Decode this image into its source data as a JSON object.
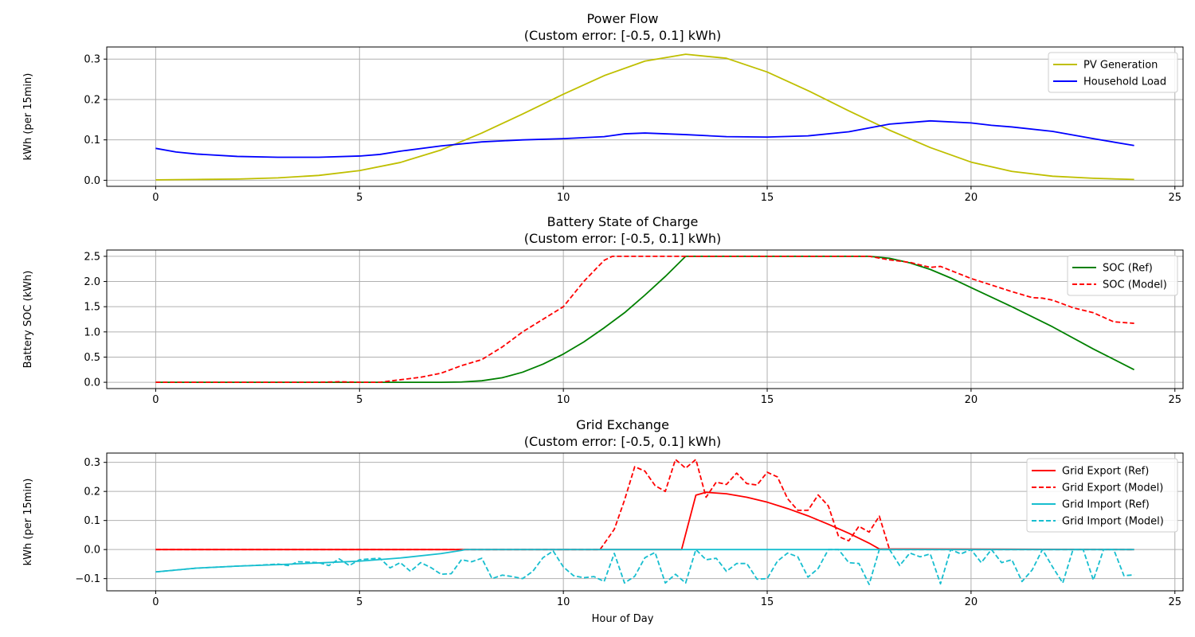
{
  "chart_data": [
    {
      "type": "line",
      "title": "Power Flow",
      "subtitle": "(Custom error: [-0.5, 0.1] kWh)",
      "xlabel": "",
      "ylabel": "kWh (per 15min)",
      "xlim": [
        -1.2,
        25.2
      ],
      "ylim": [
        -0.015,
        0.33
      ],
      "xticks": [
        0,
        5,
        10,
        15,
        20,
        25
      ],
      "yticks": [
        0.0,
        0.1,
        0.2,
        0.3
      ],
      "ytick_format": 1,
      "grid": true,
      "legend_position": "top-right",
      "series": [
        {
          "name": "PV Generation",
          "color": "#bfbf00",
          "dash": "solid",
          "x": [
            0,
            1,
            2,
            3,
            4,
            5,
            6,
            7,
            8,
            9,
            10,
            11,
            12,
            13,
            14,
            15,
            16,
            17,
            18,
            19,
            20,
            21,
            22,
            23,
            24
          ],
          "y": [
            0.001,
            0.002,
            0.003,
            0.006,
            0.012,
            0.024,
            0.044,
            0.075,
            0.117,
            0.164,
            0.213,
            0.259,
            0.295,
            0.312,
            0.302,
            0.268,
            0.222,
            0.172,
            0.124,
            0.081,
            0.045,
            0.022,
            0.01,
            0.005,
            0.002
          ]
        },
        {
          "name": "Household Load",
          "color": "#0000ff",
          "dash": "solid",
          "x": [
            0,
            0.5,
            1,
            2,
            3,
            4,
            5,
            5.5,
            6,
            7,
            8,
            9,
            10,
            11,
            11.5,
            12,
            13,
            14,
            15,
            16,
            17,
            18,
            19,
            20,
            20.5,
            21,
            22,
            23,
            24
          ],
          "y": [
            0.079,
            0.07,
            0.065,
            0.059,
            0.057,
            0.057,
            0.06,
            0.064,
            0.072,
            0.085,
            0.095,
            0.1,
            0.103,
            0.108,
            0.115,
            0.117,
            0.113,
            0.108,
            0.107,
            0.11,
            0.12,
            0.139,
            0.147,
            0.142,
            0.136,
            0.132,
            0.121,
            0.103,
            0.086
          ]
        }
      ]
    },
    {
      "type": "line",
      "title": "Battery State of Charge",
      "subtitle": "(Custom error: [-0.5, 0.1] kWh)",
      "xlabel": "",
      "ylabel": "Battery SOC (kWh)",
      "xlim": [
        -1.2,
        25.2
      ],
      "ylim": [
        -0.125,
        2.625
      ],
      "xticks": [
        0,
        5,
        10,
        15,
        20,
        25
      ],
      "yticks": [
        0.0,
        0.5,
        1.0,
        1.5,
        2.0,
        2.5
      ],
      "ytick_format": 1,
      "grid": true,
      "legend_position": "top-right",
      "series": [
        {
          "name": "SOC (Ref)",
          "color": "#008000",
          "dash": "solid",
          "x": [
            0,
            7,
            7.5,
            8,
            8.5,
            9,
            9.5,
            10,
            10.5,
            11,
            11.5,
            12,
            12.5,
            13,
            17.5,
            18,
            18.5,
            19,
            19.5,
            20,
            21,
            22,
            23,
            24
          ],
          "y": [
            0,
            0,
            0.005,
            0.03,
            0.09,
            0.2,
            0.36,
            0.56,
            0.8,
            1.08,
            1.38,
            1.73,
            2.1,
            2.5,
            2.5,
            2.46,
            2.37,
            2.24,
            2.07,
            1.88,
            1.5,
            1.1,
            0.66,
            0.25
          ]
        },
        {
          "name": "SOC (Model)",
          "color": "#ff0000",
          "dash": "dashed",
          "x": [
            0,
            1,
            2,
            3,
            4,
            4.5,
            5,
            5.5,
            6,
            6.5,
            7,
            7.5,
            8,
            8.5,
            9,
            9.5,
            10,
            10.5,
            11,
            11.2,
            17.5,
            18,
            18.5,
            19,
            19.25,
            19.5,
            20,
            20.5,
            21,
            21.5,
            21.75,
            22,
            22.5,
            23,
            23.5,
            24
          ],
          "y": [
            0,
            0,
            0,
            0,
            0,
            0.01,
            0,
            0,
            0.05,
            0.1,
            0.18,
            0.33,
            0.45,
            0.7,
            1.0,
            1.25,
            1.5,
            2.0,
            2.42,
            2.5,
            2.5,
            2.43,
            2.38,
            2.28,
            2.3,
            2.22,
            2.06,
            1.93,
            1.8,
            1.68,
            1.67,
            1.63,
            1.48,
            1.38,
            1.2,
            1.17
          ]
        }
      ]
    },
    {
      "type": "line",
      "title": "Grid Exchange",
      "subtitle": "(Custom error: [-0.5, 0.1] kWh)",
      "xlabel": "Hour of Day",
      "ylabel": "kWh (per 15min)",
      "xlim": [
        -1.2,
        25.2
      ],
      "ylim": [
        -0.142,
        0.332
      ],
      "xticks": [
        0,
        5,
        10,
        15,
        20,
        25
      ],
      "yticks": [
        -0.1,
        0.0,
        0.1,
        0.2,
        0.3
      ],
      "ytick_format": 1,
      "grid": true,
      "legend_position": "top-right",
      "series": [
        {
          "name": "Grid Export (Ref)",
          "color": "#ff0000",
          "dash": "solid",
          "x": [
            0,
            12.9,
            13.25,
            13.5,
            14,
            14.5,
            15,
            15.5,
            16,
            16.5,
            17,
            17.5,
            17.75,
            24
          ],
          "y": [
            0,
            0,
            0.187,
            0.197,
            0.192,
            0.18,
            0.163,
            0.141,
            0.116,
            0.087,
            0.056,
            0.022,
            0.002,
            0
          ]
        },
        {
          "name": "Grid Export (Model)",
          "color": "#ff0000",
          "dash": "dashed",
          "x": [
            0,
            10.9,
            11.25,
            11.5,
            11.75,
            12,
            12.25,
            12.5,
            12.75,
            13,
            13.25,
            13.5,
            13.75,
            14,
            14.25,
            14.5,
            14.75,
            15,
            15.25,
            15.5,
            15.75,
            16,
            16.25,
            16.5,
            16.75,
            17,
            17.25,
            17.5,
            17.75,
            18,
            24
          ],
          "y": [
            0,
            0,
            0.07,
            0.17,
            0.285,
            0.27,
            0.22,
            0.2,
            0.31,
            0.28,
            0.31,
            0.18,
            0.232,
            0.224,
            0.263,
            0.227,
            0.222,
            0.266,
            0.25,
            0.175,
            0.135,
            0.135,
            0.188,
            0.15,
            0.045,
            0.03,
            0.08,
            0.06,
            0.115,
            0,
            0
          ]
        },
        {
          "name": "Grid Import (Ref)",
          "color": "#17becf",
          "dash": "solid",
          "x": [
            0,
            1,
            2,
            3,
            4,
            5,
            6,
            7,
            7.5,
            7.6,
            24
          ],
          "y": [
            -0.077,
            -0.064,
            -0.057,
            -0.052,
            -0.046,
            -0.04,
            -0.029,
            -0.014,
            -0.003,
            0,
            0
          ]
        },
        {
          "name": "Grid Import (Model)",
          "color": "#17becf",
          "dash": "dashed",
          "x": [
            0,
            1,
            2,
            2.5,
            3,
            3.25,
            3.5,
            4,
            4.25,
            4.5,
            4.75,
            5,
            5.25,
            5.5,
            5.75,
            6,
            6.25,
            6.5,
            6.75,
            7,
            7.25,
            7.5,
            7.75,
            8,
            8.25,
            8.5,
            8.75,
            9,
            9.25,
            9.5,
            9.75,
            10,
            10.25,
            10.5,
            10.75,
            11,
            11.25,
            11.5,
            11.75,
            12,
            12.25,
            12.5,
            12.75,
            13,
            13.25,
            13.5,
            13.75,
            14,
            14.25,
            14.5,
            14.75,
            15,
            15.25,
            15.5,
            15.75,
            16,
            16.25,
            16.5,
            16.75,
            17,
            17.25,
            17.5,
            17.75,
            18,
            18.25,
            18.5,
            18.75,
            19,
            19.25,
            19.5,
            19.75,
            20,
            20.25,
            20.5,
            20.75,
            21,
            21.25,
            21.5,
            21.75,
            22,
            22.25,
            22.5,
            22.75,
            23,
            23.25,
            23.5,
            23.75,
            24
          ],
          "y": [
            -0.077,
            -0.064,
            -0.057,
            -0.054,
            -0.05,
            -0.055,
            -0.042,
            -0.045,
            -0.055,
            -0.032,
            -0.055,
            -0.035,
            -0.032,
            -0.03,
            -0.063,
            -0.045,
            -0.075,
            -0.045,
            -0.062,
            -0.085,
            -0.083,
            -0.035,
            -0.042,
            -0.03,
            -0.1,
            -0.088,
            -0.093,
            -0.1,
            -0.075,
            -0.028,
            -0.005,
            -0.06,
            -0.09,
            -0.097,
            -0.093,
            -0.11,
            -0.013,
            -0.115,
            -0.092,
            -0.028,
            -0.01,
            -0.115,
            -0.085,
            -0.115,
            0,
            -0.035,
            -0.03,
            -0.075,
            -0.048,
            -0.048,
            -0.102,
            -0.1,
            -0.04,
            -0.012,
            -0.025,
            -0.095,
            -0.065,
            0,
            0,
            -0.045,
            -0.048,
            -0.12,
            0,
            0,
            -0.055,
            -0.012,
            -0.025,
            -0.015,
            -0.118,
            0,
            -0.015,
            0,
            -0.045,
            0,
            -0.045,
            -0.035,
            -0.11,
            -0.07,
            0,
            -0.06,
            -0.115,
            0,
            0,
            -0.105,
            0,
            0,
            -0.09,
            -0.087
          ]
        }
      ]
    }
  ]
}
